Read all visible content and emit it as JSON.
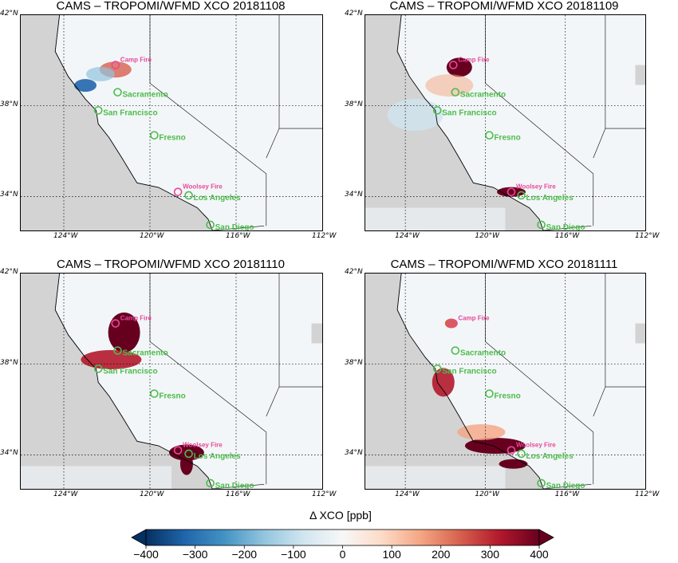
{
  "panels": [
    {
      "title": "CAMS – TROPOMI/WFMD XCO 20181108",
      "date": "20181108"
    },
    {
      "title": "CAMS – TROPOMI/WFMD XCO 20181109",
      "date": "20181109"
    },
    {
      "title": "CAMS – TROPOMI/WFMD XCO 20181110",
      "date": "20181110"
    },
    {
      "title": "CAMS – TROPOMI/WFMD XCO 20181111",
      "date": "20181111"
    }
  ],
  "axes": {
    "lat_labels": [
      "42°N",
      "38°N",
      "34°N"
    ],
    "lon_labels": [
      "124°W",
      "120°W",
      "116°W",
      "112°W"
    ],
    "lon_range": [
      -126,
      -112
    ],
    "lat_range": [
      32.5,
      42
    ]
  },
  "places": [
    {
      "name": "Camp Fire",
      "lon": -121.6,
      "lat": 39.8,
      "type": "fire",
      "color": "#e8489b"
    },
    {
      "name": "Sacramento",
      "lon": -121.5,
      "lat": 38.6,
      "type": "city",
      "color": "#4cbc4c"
    },
    {
      "name": "San Francisco",
      "lon": -122.4,
      "lat": 37.8,
      "type": "city",
      "color": "#4cbc4c"
    },
    {
      "name": "Fresno",
      "lon": -119.8,
      "lat": 36.7,
      "type": "city",
      "color": "#4cbc4c"
    },
    {
      "name": "Woolsey Fire",
      "lon": -118.7,
      "lat": 34.2,
      "type": "fire",
      "color": "#e8489b"
    },
    {
      "name": "Los Angeles",
      "lon": -118.2,
      "lat": 34.05,
      "type": "city",
      "color": "#4cbc4c"
    },
    {
      "name": "San Diego",
      "lon": -117.2,
      "lat": 32.75,
      "type": "city",
      "color": "#4cbc4c"
    }
  ],
  "colorbar": {
    "label": "Δ XCO [ppb]",
    "ticks": [
      "−400",
      "−300",
      "−200",
      "−100",
      "0",
      "100",
      "200",
      "300",
      "400"
    ],
    "min": -400,
    "max": 400,
    "colors": [
      "#053061",
      "#2166ac",
      "#4393c3",
      "#92c5de",
      "#d1e5f0",
      "#f7f7f7",
      "#fddbc7",
      "#f4a582",
      "#d6604d",
      "#b2182b",
      "#67001f"
    ]
  },
  "colors": {
    "land_nodata": "#d3d3d3",
    "background": "#f3f6f8"
  }
}
